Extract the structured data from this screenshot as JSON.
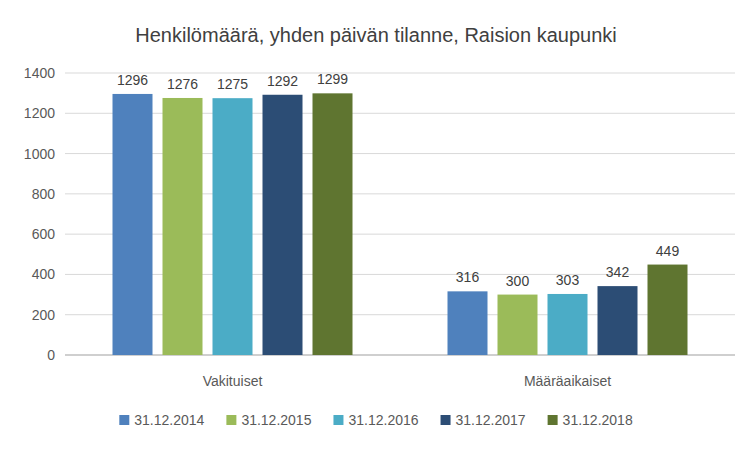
{
  "chart_data": {
    "type": "bar",
    "title": "Henkilömäärä, yhden päivän tilanne, Raision kaupunki",
    "categories": [
      "Vakituiset",
      "Määräaikaiset"
    ],
    "series": [
      {
        "name": "31.12.2014",
        "color": "#4f81bd",
        "values": [
          1296,
          316
        ]
      },
      {
        "name": "31.12.2015",
        "color": "#9bbb59",
        "values": [
          1276,
          300
        ]
      },
      {
        "name": "31.12.2016",
        "color": "#4bacc6",
        "values": [
          1275,
          303
        ]
      },
      {
        "name": "31.12.2017",
        "color": "#2c4d75",
        "values": [
          1292,
          342
        ]
      },
      {
        "name": "31.12.2018",
        "color": "#5f7530",
        "values": [
          1299,
          449
        ]
      }
    ],
    "ylim": [
      0,
      1400
    ],
    "yticks": [
      0,
      200,
      400,
      600,
      800,
      1000,
      1200,
      1400
    ],
    "grid": true,
    "data_labels": true,
    "legend": "bottom"
  }
}
